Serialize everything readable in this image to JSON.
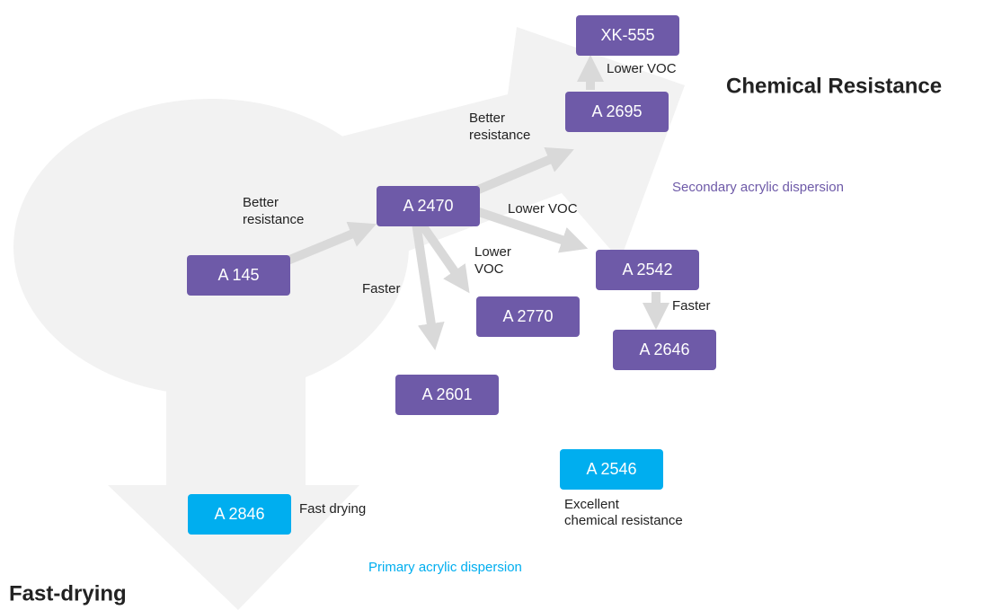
{
  "title_chemical": "Chemical Resistance",
  "title_fast": "Fast-drying",
  "legend": {
    "secondary": {
      "text": "Secondary acrylic dispersion",
      "color": "#6e5aa8"
    },
    "primary": {
      "text": "Primary acrylic dispersion",
      "color": "#00aeef"
    }
  },
  "nodes": [
    {
      "label": "XK-555",
      "color": "#6e5aa8"
    },
    {
      "label": "A 2695",
      "color": "#6e5aa8"
    },
    {
      "label": "A 2470",
      "color": "#6e5aa8"
    },
    {
      "label": "A 145",
      "color": "#6e5aa8"
    },
    {
      "label": "A 2542",
      "color": "#6e5aa8"
    },
    {
      "label": "A 2770",
      "color": "#6e5aa8"
    },
    {
      "label": "A 2646",
      "color": "#6e5aa8"
    },
    {
      "label": "A 2601",
      "color": "#6e5aa8"
    },
    {
      "label": "A 2546",
      "color": "#00aeef"
    },
    {
      "label": "A 2846",
      "color": "#00aeef"
    }
  ],
  "edge_labels": [
    [
      "Better",
      "resistance"
    ],
    [
      "Better",
      "resistance"
    ],
    [
      "Lower VOC"
    ],
    [
      "Lower",
      "VOC"
    ],
    [
      "Faster"
    ],
    [
      "Faster"
    ],
    [
      "Lower VOC"
    ]
  ],
  "notes": [
    [
      "Fast drying"
    ],
    [
      "Excellent",
      "chemical resistance"
    ]
  ]
}
